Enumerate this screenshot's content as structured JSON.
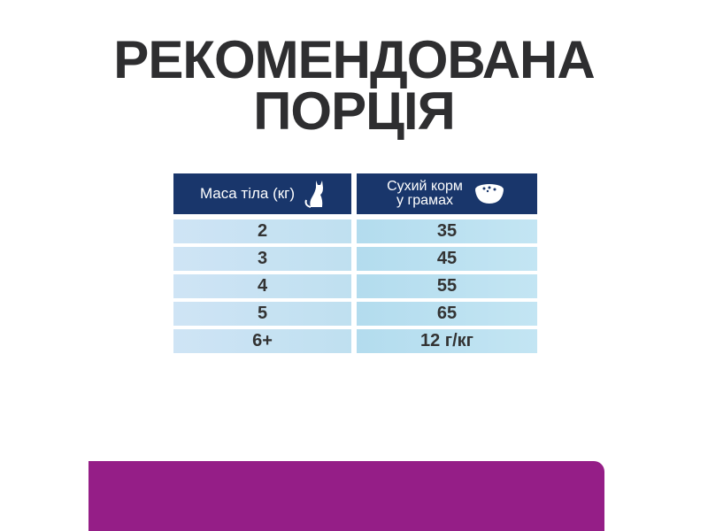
{
  "title": {
    "line1": "РЕКОМЕНДОВАНА",
    "line2": "ПОРЦІЯ"
  },
  "table": {
    "headers": {
      "weight": "Маса тіла (кг)",
      "food_line1": "Сухий корм",
      "food_line2": "у грамах"
    },
    "icons": {
      "weight": "cat-icon",
      "food": "food-bowl-icon"
    },
    "rows": [
      {
        "weight": "2",
        "grams": "35"
      },
      {
        "weight": "3",
        "grams": "45"
      },
      {
        "weight": "4",
        "grams": "55"
      },
      {
        "weight": "5",
        "grams": "65"
      },
      {
        "weight": "6+",
        "grams": "12 г/кг"
      }
    ]
  },
  "colors": {
    "header": "#19366b",
    "banner": "#951e87",
    "text": "#2e2e30"
  }
}
